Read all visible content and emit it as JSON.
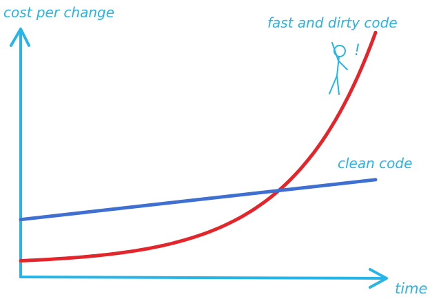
{
  "chart_data": {
    "type": "line",
    "ylabel": "cost per change",
    "xlabel": "time",
    "grid": false,
    "legend": "none",
    "xlim": [
      0,
      10
    ],
    "ylim": [
      0,
      10
    ],
    "series": [
      {
        "name": "fast and dirty code",
        "color": "#e3262b",
        "shape": "exponential",
        "x": [
          0,
          2,
          4,
          5.5,
          7,
          8,
          9,
          10
        ],
        "y": [
          0.65,
          0.95,
          1.7,
          2.8,
          4.4,
          5.9,
          7.8,
          9.8
        ]
      },
      {
        "name": "clean code",
        "color": "#3f6fd1",
        "shape": "linear",
        "x": [
          0,
          10
        ],
        "y": [
          2.3,
          3.9
        ]
      }
    ],
    "annotations": [
      {
        "text": "!",
        "near": "fast and dirty code"
      }
    ]
  },
  "colors": {
    "axis": "#27b4e6",
    "label": "#27b4e6"
  },
  "annotation": {
    "figure": "stick-figure-hanging-on-curve"
  }
}
